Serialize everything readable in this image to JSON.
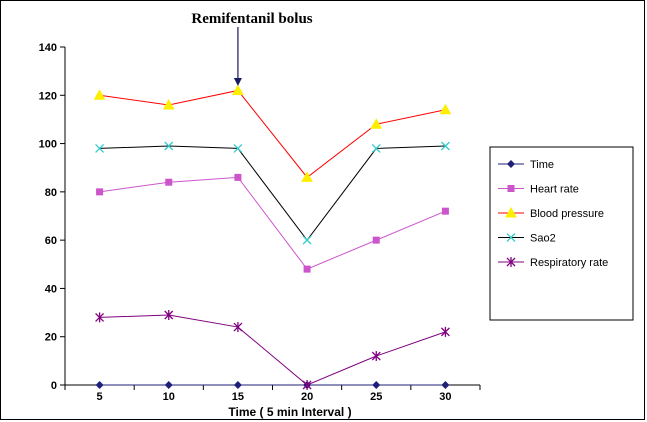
{
  "chart_data": {
    "type": "line",
    "annotation": "Remifentanil bolus",
    "annotation_x": 15,
    "xlabel": "Time ( 5 min Interval )",
    "ylabel": "",
    "categories": [
      5,
      10,
      15,
      20,
      25,
      30
    ],
    "ylim": [
      0,
      140
    ],
    "yticks": [
      0,
      20,
      40,
      60,
      80,
      100,
      120,
      140
    ],
    "grid": false,
    "legend_position": "right",
    "series": [
      {
        "name": "Time",
        "values": [
          0,
          0,
          0,
          0,
          0,
          0
        ],
        "color": "#1f1f7a",
        "marker": "diamond"
      },
      {
        "name": "Heart rate",
        "values": [
          80,
          84,
          86,
          48,
          60,
          72
        ],
        "color": "#cc55cc",
        "marker": "square"
      },
      {
        "name": "Blood pressure",
        "values": [
          120,
          116,
          122,
          86,
          108,
          114
        ],
        "color": "#ff0000",
        "marker": "triangle",
        "marker_color": "#ffee00"
      },
      {
        "name": "Sao2",
        "values": [
          98,
          99,
          98,
          60,
          98,
          99
        ],
        "color": "#000000",
        "marker": "x",
        "marker_color": "#33cccc"
      },
      {
        "name": "Respiratory rate",
        "values": [
          28,
          29,
          24,
          0,
          12,
          22
        ],
        "color": "#800080",
        "marker": "star"
      }
    ]
  }
}
